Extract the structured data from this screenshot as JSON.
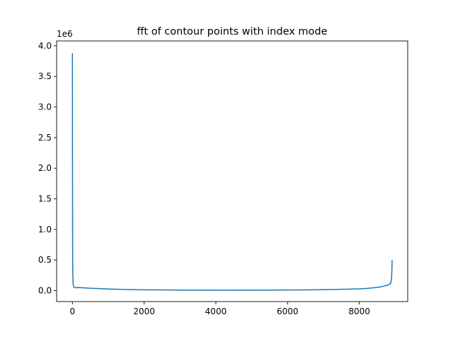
{
  "chart_data": {
    "type": "line",
    "title": "fft of contour points with index mode",
    "xlabel": "",
    "ylabel": "",
    "y_offset_label": "1e6",
    "xlim": [
      -440,
      9350
    ],
    "ylim": [
      -180000,
      4080000
    ],
    "x_ticks": [
      0,
      2000,
      4000,
      6000,
      8000
    ],
    "x_tick_labels": [
      "0",
      "2000",
      "4000",
      "6000",
      "8000"
    ],
    "y_ticks": [
      0,
      500000,
      1000000,
      1500000,
      2000000,
      2500000,
      3000000,
      3500000,
      4000000
    ],
    "y_tick_labels": [
      "0.0",
      "0.5",
      "1.0",
      "1.5",
      "2.0",
      "2.5",
      "3.0",
      "3.5",
      "4.0"
    ],
    "grid": false,
    "series": [
      {
        "color": "#1f77b4",
        "x": [
          0,
          5,
          10,
          20,
          40,
          80,
          150,
          300,
          500,
          800,
          1000,
          1500,
          2000,
          2500,
          3000,
          3500,
          4000,
          4500,
          5000,
          5500,
          6000,
          6500,
          7000,
          7500,
          8000,
          8200,
          8400,
          8600,
          8800,
          8870,
          8900,
          8910,
          8915
        ],
        "values": [
          3880000,
          900000,
          300000,
          100000,
          60000,
          45000,
          50000,
          45000,
          38000,
          30000,
          25000,
          18000,
          12000,
          10000,
          8000,
          7000,
          6000,
          6000,
          7000,
          8000,
          9000,
          11000,
          15000,
          20000,
          28000,
          35000,
          45000,
          60000,
          90000,
          110000,
          200000,
          350000,
          500000
        ]
      }
    ]
  }
}
